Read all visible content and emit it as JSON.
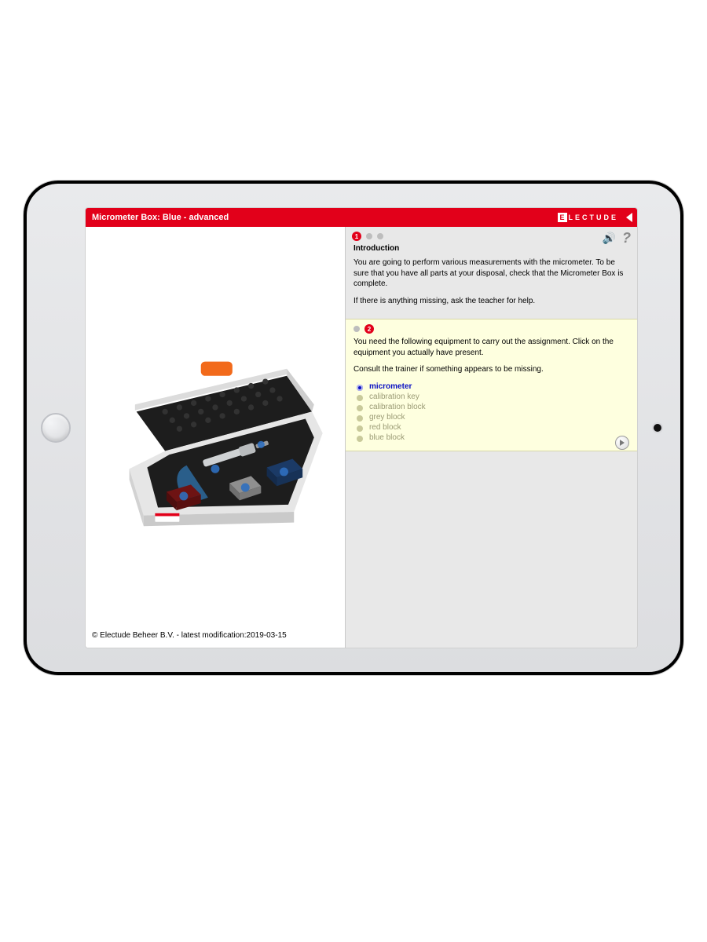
{
  "colors": {
    "header_bg": "#e2001a",
    "header_text": "#ffffff",
    "right_pane_bg": "#e8e8e8",
    "task_bg": "#feffdf",
    "step_active": "#e2001a",
    "step_inactive": "#bdbdbd",
    "selected_item": "#0a10c3",
    "unselected_item": "#9a9a74"
  },
  "header": {
    "title": "Micrometer Box: Blue - advanced",
    "brand": "LECTUDE"
  },
  "top_icons": {
    "audio": "🔊",
    "help": "?"
  },
  "steps": {
    "active_index": 0,
    "badge_1": "1",
    "badge_2": "2"
  },
  "intro": {
    "heading": "Introduction",
    "p1": "You are going to perform various measurements with the micrometer. To be sure that you have all parts at your disposal, check that the Micrometer Box is complete.",
    "p2": "If there is anything missing, ask the teacher for help."
  },
  "task": {
    "p1": "You need the following equipment to carry out the assignment. Click on the equipment you actually have present.",
    "p2": "Consult the trainer if something appears to be missing.",
    "items": [
      {
        "label": "micrometer",
        "selected": true
      },
      {
        "label": "calibration key",
        "selected": false
      },
      {
        "label": "calibration block",
        "selected": false
      },
      {
        "label": "grey block",
        "selected": false
      },
      {
        "label": "red block",
        "selected": false
      },
      {
        "label": "blue block",
        "selected": false
      }
    ]
  },
  "copyright": "© Electude Beheer B.V. - latest modification:2019-03-15",
  "case_illustration": {
    "outer_case": "#e6e6e6",
    "foam": "#1d1d1d",
    "latch": "#f26a1b",
    "micrometer_body": "#2a5e8a",
    "micrometer_thimble": "#cfd2d4",
    "red_block": "#6e1313",
    "blue_block": "#1b3a66",
    "grey_block": "#8f8f8f",
    "hotspot": "#2f6fbf"
  }
}
